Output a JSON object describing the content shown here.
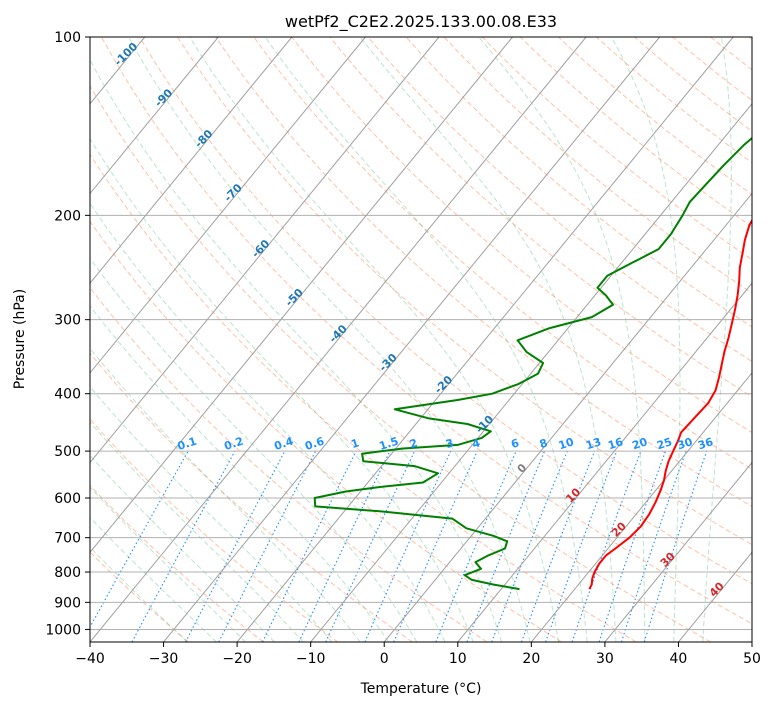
{
  "chart_data": {
    "type": "line",
    "title": "wetPf2_C2E2.2025.133.00.08.E33",
    "xlabel": "Temperature (°C)",
    "ylabel": "Pressure (hPa)",
    "xlim": [
      -40,
      50
    ],
    "ylim_hpa": [
      1050,
      100
    ],
    "y_scale": "log",
    "x_ticks": [
      -40,
      -30,
      -20,
      -10,
      0,
      10,
      20,
      30,
      40,
      50
    ],
    "y_ticks": [
      100,
      200,
      300,
      400,
      500,
      600,
      700,
      800,
      900,
      1000
    ],
    "grid": true,
    "skew_lines": true,
    "series": [
      {
        "key": "temperature",
        "color": "#ff0000",
        "points": [
          [
            22,
            855
          ],
          [
            21.8,
            840
          ],
          [
            21.2,
            820
          ],
          [
            20.8,
            800
          ],
          [
            20.5,
            775
          ],
          [
            20.5,
            750
          ],
          [
            21.0,
            730
          ],
          [
            21.7,
            700
          ],
          [
            22.0,
            670
          ],
          [
            21.8,
            640
          ],
          [
            21.3,
            610
          ],
          [
            20.6,
            580
          ],
          [
            20.0,
            560
          ],
          [
            19.2,
            540
          ],
          [
            18.5,
            520
          ],
          [
            18.0,
            500
          ],
          [
            17.5,
            480
          ],
          [
            17.0,
            465
          ],
          [
            17.2,
            440
          ],
          [
            17.4,
            415
          ],
          [
            17.0,
            395
          ],
          [
            16.0,
            375
          ],
          [
            15.0,
            358
          ],
          [
            13.9,
            340
          ],
          [
            12.9,
            322
          ],
          [
            11.8,
            305
          ],
          [
            10.6,
            288
          ],
          [
            9.4,
            273
          ],
          [
            8.0,
            258
          ],
          [
            6.6,
            245
          ],
          [
            5.4,
            232
          ],
          [
            4.2,
            220
          ],
          [
            3.2,
            208
          ],
          [
            2.6,
            195
          ],
          [
            2.1,
            180
          ],
          [
            2.0,
            165
          ],
          [
            2.1,
            150
          ],
          [
            2.2,
            140
          ],
          [
            2.5,
            132
          ],
          [
            3.0,
            125
          ],
          [
            4.5,
            115
          ],
          [
            6.0,
            108
          ],
          [
            7.6,
            100
          ]
        ]
      },
      {
        "key": "dewpoint",
        "color": "#008000",
        "points": [
          [
            12.5,
            855
          ],
          [
            8.5,
            840
          ],
          [
            5.0,
            825
          ],
          [
            3.5,
            810
          ],
          [
            5.0,
            790
          ],
          [
            3.5,
            770
          ],
          [
            4.5,
            750
          ],
          [
            6.0,
            730
          ],
          [
            5.5,
            710
          ],
          [
            3.0,
            695
          ],
          [
            -1.5,
            675
          ],
          [
            -4.5,
            650
          ],
          [
            -15.0,
            632
          ],
          [
            -24.5,
            620
          ],
          [
            -25.5,
            600
          ],
          [
            -22.0,
            585
          ],
          [
            -18.0,
            575
          ],
          [
            -12.5,
            565
          ],
          [
            -11.5,
            545
          ],
          [
            -15.5,
            530
          ],
          [
            -23.0,
            520
          ],
          [
            -24.0,
            505
          ],
          [
            -19.0,
            495
          ],
          [
            -12.0,
            488
          ],
          [
            -9.5,
            475
          ],
          [
            -9.0,
            463
          ],
          [
            -13.0,
            450
          ],
          [
            -19.0,
            440
          ],
          [
            -24.5,
            425
          ],
          [
            -17.0,
            410
          ],
          [
            -13.0,
            400
          ],
          [
            -10.5,
            385
          ],
          [
            -9.0,
            370
          ],
          [
            -9.5,
            355
          ],
          [
            -13.0,
            340
          ],
          [
            -15.5,
            325
          ],
          [
            -12.5,
            310
          ],
          [
            -8.0,
            297
          ],
          [
            -6.5,
            283
          ],
          [
            -8.5,
            273
          ],
          [
            -10.5,
            265
          ],
          [
            -10.5,
            253
          ],
          [
            -8.5,
            240
          ],
          [
            -6.5,
            228
          ],
          [
            -6.5,
            215
          ],
          [
            -7.0,
            200
          ],
          [
            -7.5,
            190
          ],
          [
            -7.3,
            178
          ],
          [
            -7.0,
            165
          ],
          [
            -6.5,
            152
          ],
          [
            -5.5,
            140
          ],
          [
            -5.0,
            130
          ],
          [
            -4.0,
            122
          ],
          [
            -2.5,
            113
          ],
          [
            0.0,
            106
          ],
          [
            1.0,
            100
          ]
        ]
      }
    ],
    "isotherm_labels": [
      "-100",
      "-90",
      "-80",
      "-70",
      "-60",
      "-50",
      "-40",
      "-30",
      "-20",
      "-10",
      "0",
      "10",
      "20",
      "30",
      "40"
    ],
    "mixing_ratio_labels": [
      "0.1",
      "0.2",
      "0.4",
      "0.6",
      "1",
      "1.5",
      "2",
      "3",
      "4",
      "6",
      "8",
      "10",
      "13",
      "16",
      "20",
      "25",
      "30",
      "36"
    ]
  }
}
